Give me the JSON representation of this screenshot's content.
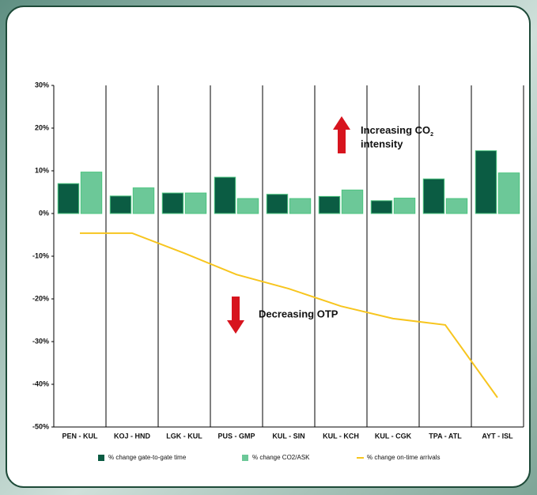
{
  "chart_data": {
    "type": "bar",
    "categories": [
      "PEN - KUL",
      "KOJ - HND",
      "LGK - KUL",
      "PUS - GMP",
      "KUL - SIN",
      "KUL - KCH",
      "KUL - CGK",
      "TPA - ATL",
      "AYT - ISL"
    ],
    "series": [
      {
        "name": "% change gate-to-gate time",
        "type": "bar",
        "color": "#0b5c43",
        "values": [
          7,
          4.1,
          4.8,
          8.5,
          4.5,
          4,
          3,
          8.1,
          14.7
        ]
      },
      {
        "name": "% change CO2/ASK",
        "type": "bar",
        "color": "#6cc898",
        "values": [
          9.7,
          6,
          4.8,
          3.5,
          3.5,
          5.5,
          3.6,
          3.5,
          9.5
        ]
      },
      {
        "name": "% change on-time arrivals",
        "type": "line",
        "color": "#f7c51e",
        "values": [
          -4.6,
          -4.6,
          -9.3,
          -14.3,
          -17.6,
          -21.7,
          -24.6,
          -26.1,
          -43.1
        ]
      }
    ],
    "ylim": [
      -50,
      30
    ],
    "yticks": [
      {
        "value": -50,
        "label": "-50%"
      },
      {
        "value": -40,
        "label": "-40%"
      },
      {
        "value": -30,
        "label": "-30%"
      },
      {
        "value": -20,
        "label": "-20%"
      },
      {
        "value": -10,
        "label": "-10%"
      },
      {
        "value": 0,
        "label": "0%"
      },
      {
        "value": 10,
        "label": "10%"
      },
      {
        "value": 20,
        "label": "20%"
      },
      {
        "value": 30,
        "label": "30%"
      }
    ],
    "annotations": {
      "increase": {
        "text": "Increasing CO",
        "subscript": "2",
        "line2": "intensity"
      },
      "decrease": {
        "text": "Decreasing OTP"
      }
    },
    "grid": false
  }
}
